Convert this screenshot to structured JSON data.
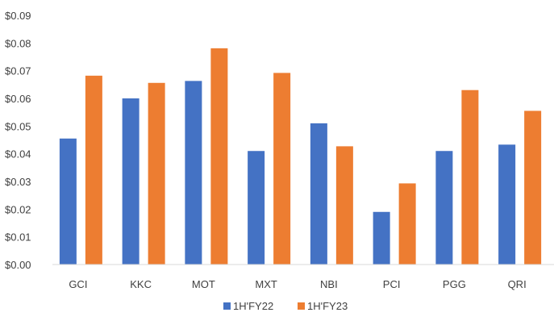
{
  "chart_data": {
    "type": "bar",
    "title": "",
    "xlabel": "",
    "ylabel": "",
    "categories": [
      "GCI",
      "KKC",
      "MOT",
      "MXT",
      "NBI",
      "PCI",
      "PGG",
      "QRI"
    ],
    "series": [
      {
        "name": "1H'FY22",
        "color": "#4472C4",
        "values": [
          0.0455,
          0.06,
          0.0663,
          0.041,
          0.051,
          0.019,
          0.041,
          0.0433
        ]
      },
      {
        "name": "1H'FY23",
        "color": "#ED7D31",
        "values": [
          0.0682,
          0.0656,
          0.0781,
          0.0692,
          0.0427,
          0.0293,
          0.063,
          0.0555
        ]
      }
    ],
    "ylim": [
      0,
      0.09
    ],
    "yticks": [
      0,
      0.01,
      0.02,
      0.03,
      0.04,
      0.05,
      0.06,
      0.07,
      0.08,
      0.09
    ],
    "ytick_labels": [
      "$0.00",
      "$0.01",
      "$0.02",
      "$0.03",
      "$0.04",
      "$0.05",
      "$0.06",
      "$0.07",
      "$0.08",
      "$0.09"
    ],
    "grid": false,
    "legend_position": "bottom"
  }
}
